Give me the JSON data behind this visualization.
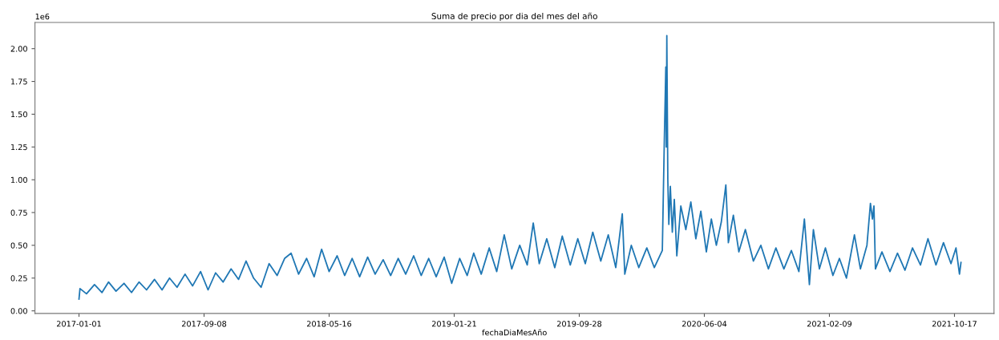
{
  "chart_data": {
    "type": "line",
    "title": "Suma de precio por dia del mes del año",
    "xlabel": "fechaDiaMesAño",
    "annotations": [
      "1e6"
    ],
    "grid": false,
    "legend": false,
    "marker": "none",
    "line_style": "solid",
    "xlim": [
      "2016-10-05",
      "2022-01-04"
    ],
    "xticks": [
      {
        "value": "2017-01-01",
        "label": "2017-01-01"
      },
      {
        "value": "2017-09-08",
        "label": "2017-09-08"
      },
      {
        "value": "2018-05-16",
        "label": "2018-05-16"
      },
      {
        "value": "2019-01-21",
        "label": "2019-01-21"
      },
      {
        "value": "2019-09-28",
        "label": "2019-09-28"
      },
      {
        "value": "2020-06-04",
        "label": "2020-06-04"
      },
      {
        "value": "2021-02-09",
        "label": "2021-02-09"
      },
      {
        "value": "2021-10-17",
        "label": "2021-10-17"
      }
    ],
    "ylim": [
      -0.02,
      2.2
    ],
    "yticks": [
      {
        "value": 0,
        "label": "0.00"
      },
      {
        "value": 0.25,
        "label": "0.25"
      },
      {
        "value": 0.5,
        "label": "0.50"
      },
      {
        "value": 0.75,
        "label": "0.75"
      },
      {
        "value": 1,
        "label": "1.00"
      },
      {
        "value": 1.25,
        "label": "1.25"
      },
      {
        "value": 1.5,
        "label": "1.50"
      },
      {
        "value": 1.75,
        "label": "1.75"
      },
      {
        "value": 2,
        "label": "2.00"
      }
    ],
    "x": [
      "2017-01-01",
      "2017-01-03",
      "2017-01-16",
      "2017-02-01",
      "2017-02-16",
      "2017-03-01",
      "2017-03-16",
      "2017-04-01",
      "2017-04-16",
      "2017-05-01",
      "2017-05-16",
      "2017-06-01",
      "2017-06-16",
      "2017-07-01",
      "2017-07-16",
      "2017-08-01",
      "2017-08-16",
      "2017-09-01",
      "2017-09-16",
      "2017-10-01",
      "2017-10-16",
      "2017-11-01",
      "2017-11-16",
      "2017-12-01",
      "2017-12-16",
      "2017-12-31",
      "2018-01-16",
      "2018-02-01",
      "2018-02-16",
      "2018-03-01",
      "2018-03-16",
      "2018-04-01",
      "2018-04-16",
      "2018-05-01",
      "2018-05-16",
      "2018-06-01",
      "2018-06-16",
      "2018-07-01",
      "2018-07-16",
      "2018-08-01",
      "2018-08-16",
      "2018-09-01",
      "2018-09-16",
      "2018-10-01",
      "2018-10-16",
      "2018-11-01",
      "2018-11-16",
      "2018-12-01",
      "2018-12-16",
      "2019-01-01",
      "2019-01-16",
      "2019-02-01",
      "2019-02-16",
      "2019-03-01",
      "2019-03-16",
      "2019-04-01",
      "2019-04-16",
      "2019-05-01",
      "2019-05-16",
      "2019-06-01",
      "2019-06-16",
      "2019-06-28",
      "2019-07-10",
      "2019-07-25",
      "2019-08-10",
      "2019-08-25",
      "2019-09-10",
      "2019-09-25",
      "2019-10-10",
      "2019-10-25",
      "2019-11-10",
      "2019-11-25",
      "2019-12-10",
      "2019-12-23",
      "2019-12-28",
      "2020-01-10",
      "2020-01-25",
      "2020-02-10",
      "2020-02-25",
      "2020-03-12",
      "2020-03-16",
      "2020-03-19",
      "2020-03-20",
      "2020-03-21",
      "2020-03-23",
      "2020-03-25",
      "2020-03-28",
      "2020-04-01",
      "2020-04-05",
      "2020-04-10",
      "2020-04-18",
      "2020-04-28",
      "2020-05-08",
      "2020-05-18",
      "2020-05-28",
      "2020-06-08",
      "2020-06-18",
      "2020-06-28",
      "2020-07-08",
      "2020-07-17",
      "2020-07-22",
      "2020-08-01",
      "2020-08-12",
      "2020-08-25",
      "2020-09-10",
      "2020-09-25",
      "2020-10-10",
      "2020-10-25",
      "2020-11-10",
      "2020-11-25",
      "2020-12-10",
      "2020-12-21",
      "2020-12-31",
      "2021-01-08",
      "2021-01-20",
      "2021-02-01",
      "2021-02-16",
      "2021-03-01",
      "2021-03-15",
      "2021-03-31",
      "2021-04-12",
      "2021-04-25",
      "2021-05-02",
      "2021-05-06",
      "2021-05-09",
      "2021-05-12",
      "2021-05-25",
      "2021-06-10",
      "2021-06-25",
      "2021-07-10",
      "2021-07-25",
      "2021-08-10",
      "2021-08-25",
      "2021-09-10",
      "2021-09-25",
      "2021-10-10",
      "2021-10-20",
      "2021-10-27",
      "2021-10-30"
    ],
    "series": [
      {
        "color": "#1f77b4",
        "values": [
          0.09,
          0.17,
          0.13,
          0.2,
          0.14,
          0.22,
          0.15,
          0.21,
          0.14,
          0.22,
          0.16,
          0.24,
          0.16,
          0.25,
          0.18,
          0.28,
          0.19,
          0.3,
          0.16,
          0.29,
          0.22,
          0.32,
          0.24,
          0.38,
          0.25,
          0.18,
          0.36,
          0.27,
          0.4,
          0.44,
          0.28,
          0.4,
          0.26,
          0.47,
          0.3,
          0.42,
          0.27,
          0.4,
          0.26,
          0.41,
          0.28,
          0.39,
          0.27,
          0.4,
          0.28,
          0.42,
          0.27,
          0.4,
          0.26,
          0.41,
          0.21,
          0.4,
          0.27,
          0.44,
          0.28,
          0.48,
          0.3,
          0.58,
          0.32,
          0.5,
          0.35,
          0.67,
          0.36,
          0.55,
          0.33,
          0.57,
          0.35,
          0.55,
          0.36,
          0.6,
          0.38,
          0.58,
          0.33,
          0.74,
          0.28,
          0.5,
          0.33,
          0.48,
          0.33,
          0.46,
          1.3,
          1.86,
          1.25,
          2.1,
          1.0,
          0.66,
          0.95,
          0.6,
          0.85,
          0.42,
          0.8,
          0.62,
          0.83,
          0.55,
          0.76,
          0.45,
          0.7,
          0.5,
          0.68,
          0.96,
          0.52,
          0.73,
          0.45,
          0.62,
          0.38,
          0.5,
          0.32,
          0.48,
          0.32,
          0.46,
          0.3,
          0.7,
          0.2,
          0.62,
          0.32,
          0.48,
          0.27,
          0.4,
          0.25,
          0.58,
          0.32,
          0.5,
          0.82,
          0.7,
          0.8,
          0.32,
          0.45,
          0.3,
          0.44,
          0.31,
          0.48,
          0.35,
          0.55,
          0.35,
          0.52,
          0.36,
          0.48,
          0.28,
          0.37
        ]
      }
    ]
  }
}
